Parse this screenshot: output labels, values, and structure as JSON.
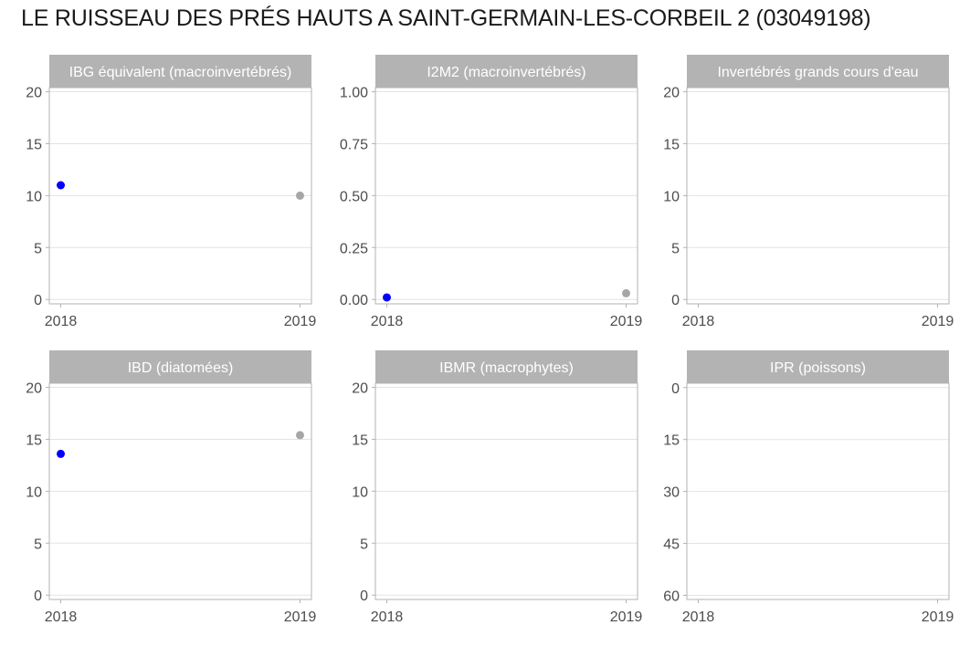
{
  "title": "LE RUISSEAU DES PRÉS HAUTS A SAINT-GERMAIN-LES-CORBEIL 2 (03049198)",
  "colors": {
    "strip_bg": "#b3b3b3",
    "strip_text": "#ffffff",
    "panel_border": "#b3b3b3",
    "grid": "#e3e3e3",
    "tick_text": "#4d4d4d",
    "point_2018": "#0000ff",
    "point_2019": "#a6a6a6"
  },
  "chart_data": [
    {
      "type": "scatter",
      "title": "IBG équivalent (macroinvertébrés)",
      "x_ticks": [
        "2018",
        "2019"
      ],
      "y_ticks": [
        "0",
        "5",
        "10",
        "15",
        "20"
      ],
      "ylim": [
        -0.42,
        20.4
      ],
      "y_reversed": false,
      "points": [
        {
          "x": "2018",
          "y": 11,
          "color": "#0000ff"
        },
        {
          "x": "2019",
          "y": 10,
          "color": "#a6a6a6"
        }
      ]
    },
    {
      "type": "scatter",
      "title": "I2M2 (macroinvertébrés)",
      "x_ticks": [
        "2018",
        "2019"
      ],
      "y_ticks": [
        "0.00",
        "0.25",
        "0.50",
        "0.75",
        "1.00"
      ],
      "ylim": [
        -0.021,
        1.02
      ],
      "y_reversed": false,
      "points": [
        {
          "x": "2018",
          "y": 0.01,
          "color": "#0000ff"
        },
        {
          "x": "2019",
          "y": 0.03,
          "color": "#a6a6a6"
        }
      ]
    },
    {
      "type": "scatter",
      "title": "Invertébrés grands cours d'eau",
      "x_ticks": [
        "2018",
        "2019"
      ],
      "y_ticks": [
        "0",
        "5",
        "10",
        "15",
        "20"
      ],
      "ylim": [
        -0.42,
        20.4
      ],
      "y_reversed": false,
      "points": []
    },
    {
      "type": "scatter",
      "title": "IBD (diatomées)",
      "x_ticks": [
        "2018",
        "2019"
      ],
      "y_ticks": [
        "0",
        "5",
        "10",
        "15",
        "20"
      ],
      "ylim": [
        -0.42,
        20.4
      ],
      "y_reversed": false,
      "points": [
        {
          "x": "2018",
          "y": 13.6,
          "color": "#0000ff"
        },
        {
          "x": "2019",
          "y": 15.4,
          "color": "#a6a6a6"
        }
      ]
    },
    {
      "type": "scatter",
      "title": "IBMR (macrophytes)",
      "x_ticks": [
        "2018",
        "2019"
      ],
      "y_ticks": [
        "0",
        "5",
        "10",
        "15",
        "20"
      ],
      "ylim": [
        -0.42,
        20.4
      ],
      "y_reversed": false,
      "points": []
    },
    {
      "type": "scatter",
      "title": "IPR (poissons)",
      "x_ticks": [
        "2018",
        "2019"
      ],
      "y_ticks": [
        "0",
        "15",
        "30",
        "45",
        "60"
      ],
      "ylim": [
        -1.26,
        61.2
      ],
      "y_reversed": true,
      "points": []
    }
  ]
}
